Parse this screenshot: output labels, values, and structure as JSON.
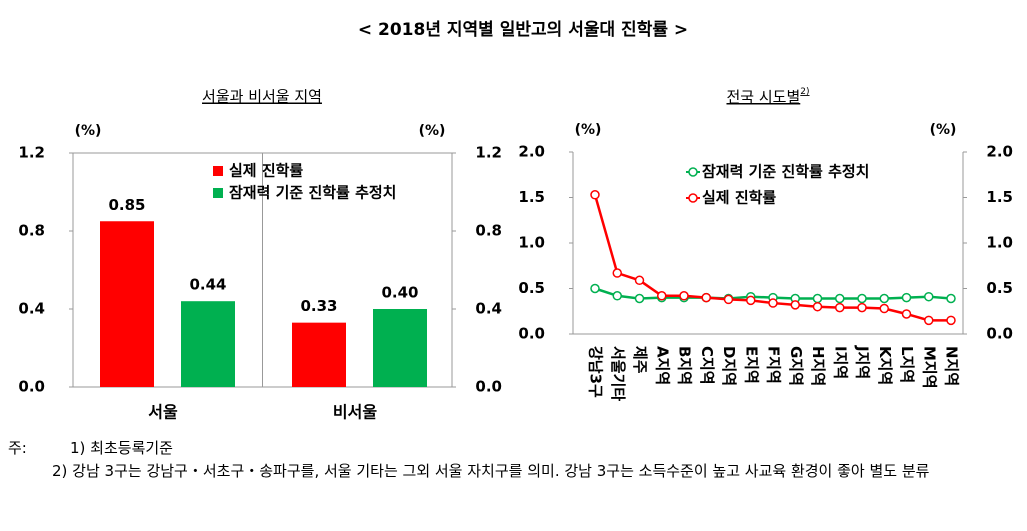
{
  "title": "< 2018년 지역별 일반고의 서울대 진학률 >",
  "chart_data": [
    {
      "type": "bar",
      "title": "서울과 비서울 지역",
      "y_unit": "(%)",
      "y2_unit": "(%)",
      "categories": [
        "서울",
        "비서울"
      ],
      "series": [
        {
          "name": "실제 진학률",
          "color": "#ff0000",
          "values": [
            0.85,
            0.33
          ]
        },
        {
          "name": "잠재력 기준 진학률 추정치",
          "color": "#00b050",
          "values": [
            0.44,
            0.4
          ],
          "value_labels": [
            "0.44",
            "0.40"
          ]
        }
      ],
      "ylim": [
        0,
        1.2
      ],
      "yticks": [
        {
          "value": 0,
          "label": "0.0"
        },
        0.4,
        0.8,
        1.2
      ],
      "y2lim": [
        0,
        1.2
      ],
      "y2ticks": [
        {
          "value": 0,
          "label": "0.0"
        },
        0.4,
        0.8,
        1.2
      ]
    },
    {
      "type": "line",
      "title": "전국 시도별",
      "title_note": "2)",
      "y_unit": "(%)",
      "y2_unit": "(%)",
      "categories": [
        "강남3구",
        "서울기타",
        "제주",
        "A지역",
        "B지역",
        "C지역",
        "D지역",
        "E지역",
        "F지역",
        "G지역",
        "H지역",
        "I지역",
        "J지역",
        "K지역",
        "L지역",
        "M지역",
        "N지역"
      ],
      "series": [
        {
          "name": "잠재력 기준 진학률 추정치",
          "color": "#00b050",
          "values": [
            0.5,
            0.42,
            0.39,
            0.4,
            0.4,
            0.4,
            0.39,
            0.41,
            0.4,
            0.39,
            0.39,
            0.39,
            0.39,
            0.39,
            0.4,
            0.41,
            0.39
          ]
        },
        {
          "name": "실제 진학률",
          "color": "#ff0000",
          "values": [
            1.53,
            0.67,
            0.59,
            0.42,
            0.42,
            0.4,
            0.38,
            0.37,
            0.34,
            0.32,
            0.3,
            0.29,
            0.29,
            0.28,
            0.22,
            0.15,
            0.15
          ]
        }
      ],
      "ylim": [
        0,
        2.0
      ],
      "yticks": [
        {
          "value": 0,
          "label": "0.0"
        },
        0.5,
        {
          "value": 1,
          "label": "1.0"
        },
        1.5,
        {
          "value": 2,
          "label": "2.0"
        }
      ],
      "y2lim": [
        0,
        2.0
      ],
      "y2ticks": [
        {
          "value": 0,
          "label": "0.0"
        },
        0.5,
        {
          "value": 1,
          "label": "1.0"
        },
        1.5,
        {
          "value": 2,
          "label": "2.0"
        }
      ]
    }
  ],
  "notes": {
    "label": "주:",
    "items": [
      "1) 최초등록기준",
      "2) 강남 3구는 강남구・서초구・송파구를, 서울 기타는 그외 서울 자치구를 의미. 강남 3구는 소득수준이 높고 사교육 환경이 좋아 별도 분류"
    ]
  }
}
